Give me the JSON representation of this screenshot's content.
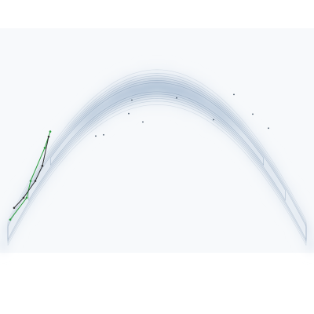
{
  "chart_data": {
    "type": "heatmap",
    "title": "",
    "xlabel": "",
    "ylabel": "",
    "grid": false,
    "axes_visible": false,
    "xlim": [
      -2.0,
      2.0
    ],
    "ylim": [
      -1.0,
      3.0
    ],
    "density": {
      "description_free": true,
      "function": "rosenbrock_banana",
      "params": {
        "a": 1.0,
        "b": 5.0,
        "scale": 1.0
      },
      "colormap": [
        "#ffffff",
        "#e8eef5",
        "#c9d6e4",
        "#a9bdd3"
      ],
      "contour_levels": [
        0.15,
        0.3,
        0.45,
        0.6,
        0.75,
        0.88
      ],
      "contour_color": "#8aa0b8"
    },
    "series": [
      {
        "kind": "trajectory",
        "color": "#2e9e3e",
        "points": [
          [
            -1.87,
            -0.41
          ],
          [
            -1.66,
            -0.02
          ],
          [
            -1.61,
            0.28
          ],
          [
            -1.43,
            0.87
          ],
          [
            -1.36,
            1.16
          ]
        ]
      },
      {
        "kind": "trajectory",
        "color": "#333333",
        "points": [
          [
            -1.82,
            -0.2
          ],
          [
            -1.7,
            -0.02
          ],
          [
            -1.55,
            0.28
          ],
          [
            -1.46,
            0.55
          ],
          [
            -1.38,
            1.07
          ]
        ]
      }
    ],
    "samples": [
      [
        -0.32,
        1.72
      ],
      [
        0.98,
        1.82
      ],
      [
        1.22,
        1.47
      ],
      [
        0.72,
        1.37
      ],
      [
        -0.36,
        1.48
      ],
      [
        -0.78,
        1.08
      ],
      [
        -0.18,
        1.33
      ],
      [
        0.25,
        1.76
      ],
      [
        -0.68,
        1.1
      ],
      [
        1.42,
        1.22
      ]
    ]
  }
}
